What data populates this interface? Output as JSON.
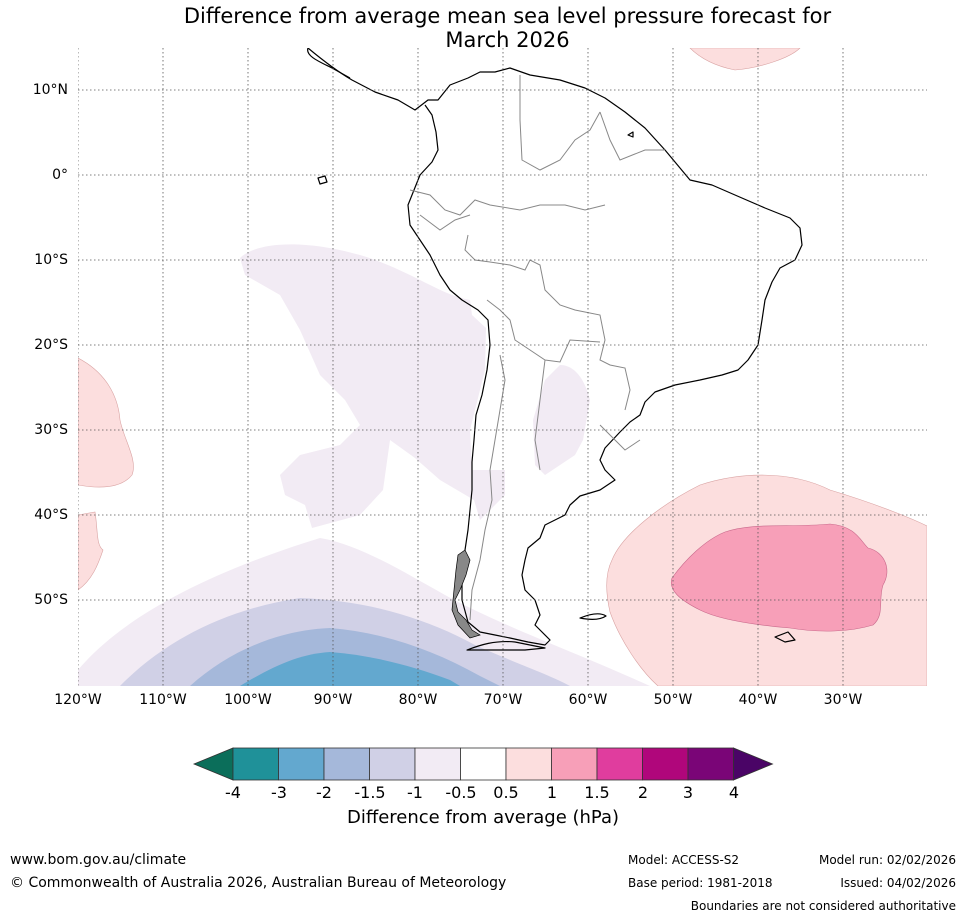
{
  "title_line1": "Difference from average mean sea level pressure forecast for",
  "title_line2": "March 2026",
  "lat_labels": [
    "10°N",
    "0°",
    "10°S",
    "20°S",
    "30°S",
    "40°S",
    "50°S"
  ],
  "lon_labels": [
    "120°W",
    "110°W",
    "100°W",
    "90°W",
    "80°W",
    "70°W",
    "60°W",
    "50°W",
    "40°W",
    "30°W"
  ],
  "colorbar": {
    "ticks": [
      "-4",
      "-3",
      "-2",
      "-1.5",
      "-1",
      "-0.5",
      "0.5",
      "1",
      "1.5",
      "2",
      "3",
      "4"
    ],
    "colors": [
      "#0b6e5a",
      "#1f9199",
      "#63a8cf",
      "#a5b8da",
      "#d0d0e6",
      "#f2ebf4",
      "#ffffff",
      "#fcdede",
      "#f79fb8",
      "#e03d9e",
      "#b0067b",
      "#7a0577",
      "#4a0466"
    ],
    "label": "Difference from average (hPa)"
  },
  "footer": {
    "website": "www.bom.gov.au/climate",
    "copyright": "© Commonwealth of Australia 2026, Australian Bureau of Meteorology",
    "model": "Model: ACCESS-S2",
    "base_period": "Base period: 1981-2018",
    "model_run": "Model run: 02/02/2026",
    "issued": "Issued: 04/02/2026",
    "disclaimer": "Boundaries are not considered authoritative"
  }
}
